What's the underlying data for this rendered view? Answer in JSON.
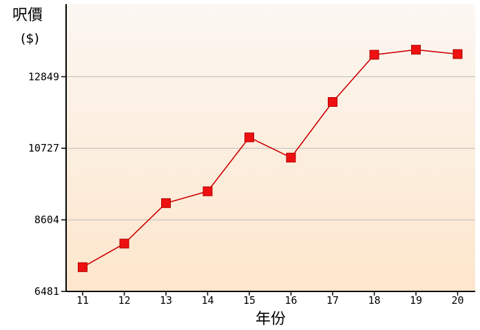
{
  "chart_data": {
    "type": "line",
    "ylabel": "呎價",
    "ylabel_unit": "($)",
    "xlabel": "年份",
    "categories": [
      "11",
      "12",
      "13",
      "14",
      "15",
      "16",
      "17",
      "18",
      "19",
      "20"
    ],
    "y_ticks": [
      "6481",
      "8604",
      "10727",
      "12849"
    ],
    "ylim": [
      6481,
      14500
    ],
    "grid": true,
    "series": [
      {
        "values": [
          7200,
          7900,
          9100,
          9450,
          11050,
          10450,
          12100,
          13500,
          13650,
          13520
        ]
      }
    ],
    "colors": {
      "line": "#cc0000",
      "marker": "#ee1111",
      "grid": "#bbbbbb",
      "background_top": "#fbf7f2",
      "background_bottom": "#fde6cc"
    }
  }
}
